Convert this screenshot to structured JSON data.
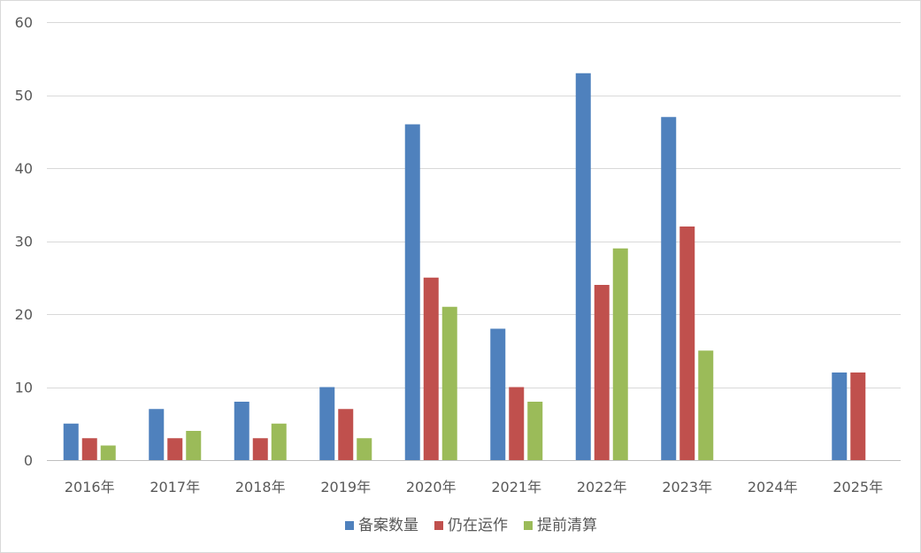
{
  "chart_data": {
    "type": "bar",
    "categories": [
      "2016年",
      "2017年",
      "2018年",
      "2019年",
      "2020年",
      "2021年",
      "2022年",
      "2023年",
      "2024年",
      "2025年"
    ],
    "series": [
      {
        "name": "备案数量",
        "color": "#4f81bd",
        "values": [
          5,
          7,
          8,
          10,
          46,
          18,
          53,
          47,
          null,
          12
        ]
      },
      {
        "name": "仍在运作",
        "color": "#c0504d",
        "values": [
          3,
          3,
          3,
          7,
          25,
          10,
          24,
          32,
          null,
          12
        ]
      },
      {
        "name": "提前清算",
        "color": "#9bbb59",
        "values": [
          2,
          4,
          5,
          3,
          21,
          8,
          29,
          15,
          null,
          null
        ]
      }
    ],
    "ylim": [
      0,
      60
    ],
    "yticks": [
      0,
      10,
      20,
      30,
      40,
      50,
      60
    ],
    "grid": true,
    "legend_position": "bottom"
  }
}
